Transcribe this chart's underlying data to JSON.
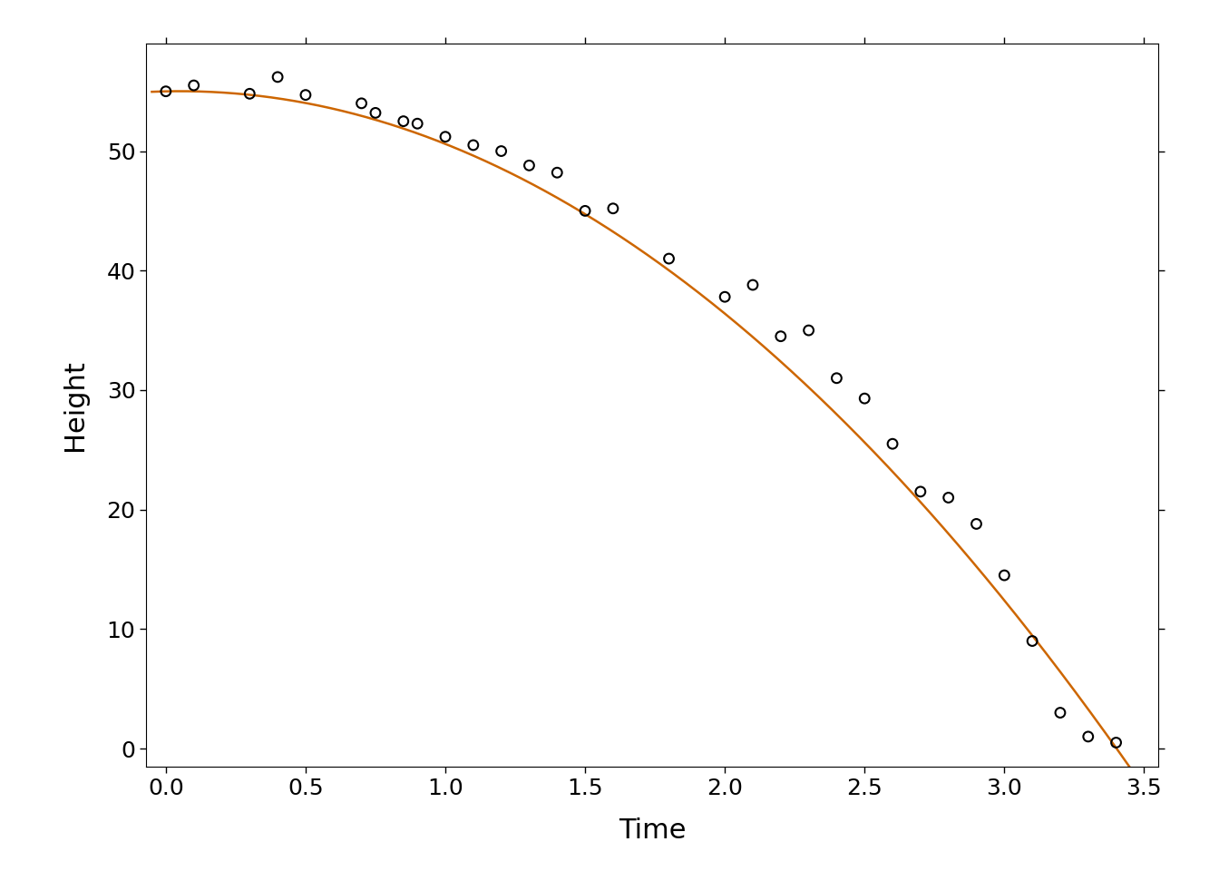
{
  "title": "",
  "xlabel": "Time",
  "ylabel": "Height",
  "background_color": "#ffffff",
  "plot_bg_color": "#ffffff",
  "curve_color": "#CD6600",
  "point_color": "#000000",
  "point_facecolor": "none",
  "xlim": [
    -0.07,
    3.55
  ],
  "ylim": [
    -1.5,
    59
  ],
  "xticks": [
    0.0,
    0.5,
    1.0,
    1.5,
    2.0,
    2.5,
    3.0,
    3.5
  ],
  "yticks": [
    0,
    10,
    20,
    30,
    40,
    50
  ],
  "tick_fontsize": 18,
  "label_fontsize": 22,
  "parabola_a": -4.9,
  "parabola_b": 0.5,
  "parabola_c": 55.0,
  "data_time": [
    0.0,
    0.1,
    0.3,
    0.4,
    0.5,
    0.7,
    0.75,
    0.85,
    0.9,
    1.0,
    1.1,
    1.2,
    1.3,
    1.4,
    1.5,
    1.6,
    1.8,
    2.0,
    2.1,
    2.2,
    2.3,
    2.4,
    2.5,
    2.6,
    2.7,
    2.8,
    2.9,
    3.0,
    3.1,
    3.2,
    3.3,
    3.4
  ],
  "data_height": [
    55.0,
    55.5,
    54.8,
    56.2,
    54.7,
    54.0,
    53.2,
    52.5,
    52.3,
    51.2,
    50.5,
    50.0,
    48.8,
    48.2,
    45.0,
    45.2,
    41.0,
    37.8,
    38.8,
    34.5,
    35.0,
    31.0,
    29.3,
    25.5,
    21.5,
    21.0,
    18.8,
    14.5,
    9.0,
    3.0,
    1.0,
    0.5
  ],
  "line_width": 1.8,
  "point_size": 60,
  "point_lw": 1.5
}
